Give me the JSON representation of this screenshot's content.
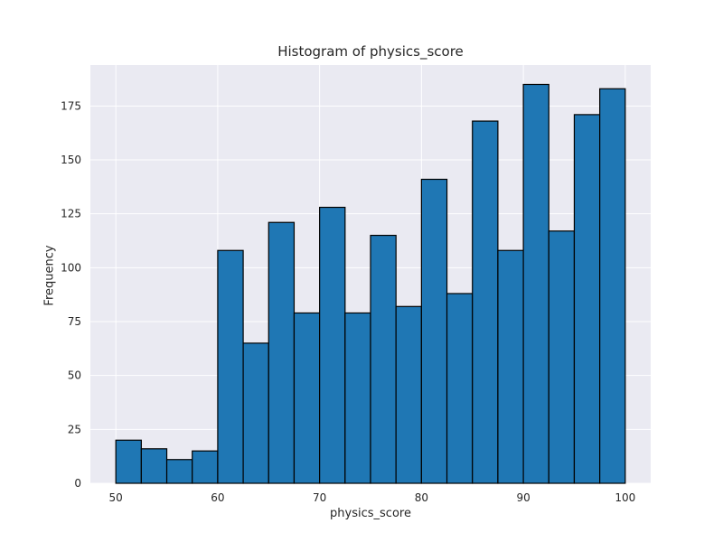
{
  "chart_data": {
    "type": "bar",
    "title": "Histogram of physics_score",
    "xlabel": "physics_score",
    "ylabel": "Frequency",
    "bin_edges": [
      50,
      52.5,
      55,
      57.5,
      60,
      62.5,
      65,
      67.5,
      70,
      72.5,
      75,
      77.5,
      80,
      82.5,
      85,
      87.5,
      90,
      92.5,
      95,
      97.5,
      100
    ],
    "values": [
      20,
      16,
      11,
      15,
      108,
      65,
      121,
      79,
      128,
      79,
      115,
      82,
      141,
      88,
      168,
      108,
      185,
      117,
      171,
      183
    ],
    "xlim": [
      47.5,
      102.5
    ],
    "ylim": [
      0,
      194
    ],
    "x_ticks": [
      50,
      60,
      70,
      80,
      90,
      100
    ],
    "y_ticks": [
      0,
      25,
      50,
      75,
      100,
      125,
      150,
      175
    ],
    "grid": true,
    "colors": {
      "bar_fill": "#1f77b4",
      "bar_edge": "#000000",
      "plot_background": "#eaeaf2",
      "grid": "#ffffff"
    }
  }
}
